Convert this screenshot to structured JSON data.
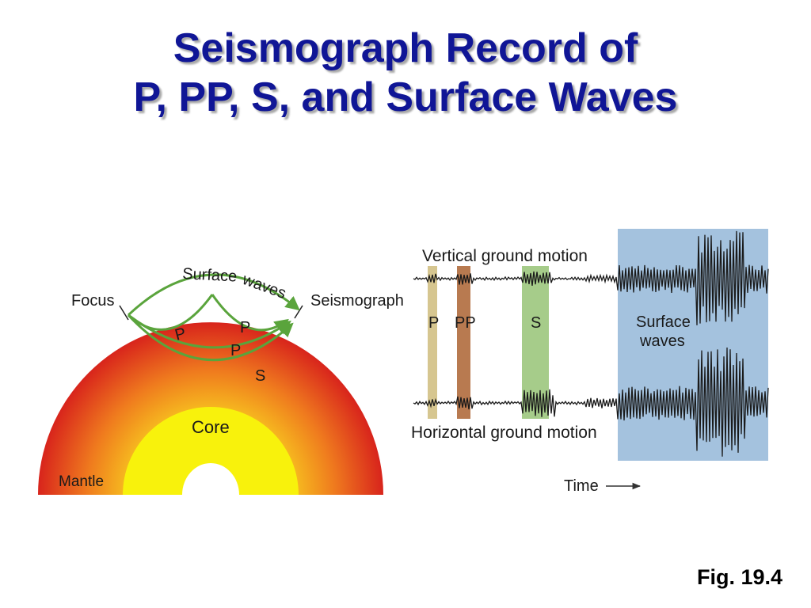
{
  "title": {
    "line1": "Seismograph Record of",
    "line2": "P, PP, S, and Surface Waves"
  },
  "earth_diagram": {
    "focus_label": "Focus",
    "seismograph_label": "Seismograph",
    "surface_waves_label_1": "Surface",
    "surface_waves_label_2": "waves",
    "p_label_1": "P",
    "p_label_2": "P",
    "p_label_3": "P",
    "s_label": "S",
    "core_label": "Core",
    "mantle_label": "Mantle",
    "colors": {
      "mantle_outer": "#d8241c",
      "mantle_inner": "#f6b81f",
      "core": "#f8f20c",
      "ray": "#5aa43c"
    }
  },
  "seismogram": {
    "vertical_label": "Vertical ground motion",
    "horizontal_label": "Horizontal ground motion",
    "band_p_label": "P",
    "band_pp_label": "PP",
    "band_s_label": "S",
    "surface_label_1": "Surface",
    "surface_label_2": "waves",
    "time_label": "Time",
    "colors": {
      "p_band": "#d6c690",
      "pp_band": "#b87a50",
      "s_band": "#a6cc8a",
      "surface_band": "#a4c2de"
    }
  },
  "figure_ref": "Fig. 19.4"
}
